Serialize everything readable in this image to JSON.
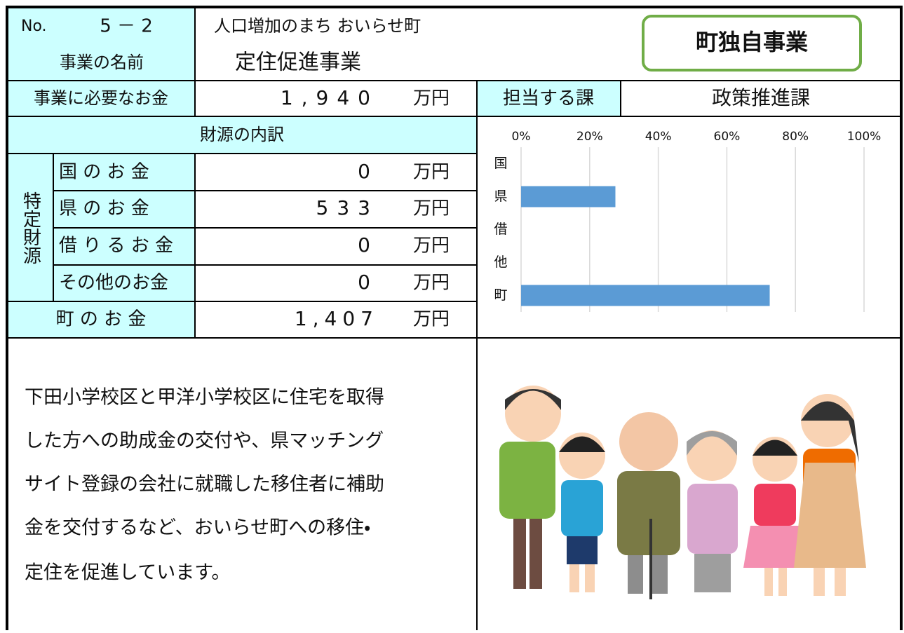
{
  "header": {
    "no_label": "No.",
    "number": "5 － 2",
    "name_label": "事業の名前",
    "catchphrase": "人口増加のまち おいらせ町",
    "project_name": "定住促進事業",
    "badge": "町独自事業"
  },
  "cost": {
    "label": "事業に必要なお金",
    "amount": "1,940",
    "unit": "万円"
  },
  "department": {
    "label": "担当する課",
    "value": "政策推進課"
  },
  "funding": {
    "header": "財源の内訳",
    "group_label": "特定財源",
    "rows": [
      {
        "label": "国 の お 金",
        "amount": "0",
        "unit": "万円"
      },
      {
        "label": "県 の お 金",
        "amount": "533",
        "unit": "万円"
      },
      {
        "label": "借 り る お 金",
        "amount": "0",
        "unit": "万円"
      },
      {
        "label": "その他のお金",
        "amount": "0",
        "unit": "万円"
      }
    ],
    "town": {
      "label": "町 の お 金",
      "amount": "1,407",
      "unit": "万円"
    }
  },
  "description": {
    "lines": [
      "下田小学校区と甲洋小学校区に住宅を取得",
      "した方への助成金の交付や、県マッチング",
      "サイト登録の会社に就職した移住者に補助",
      "金を交付するなど、おいらせ町への移住・",
      "定住を促進しています。"
    ]
  },
  "chart_data": {
    "type": "bar",
    "orientation": "horizontal",
    "categories": [
      "国",
      "県",
      "借",
      "他",
      "町"
    ],
    "values": [
      0,
      27.5,
      0,
      0,
      72.5
    ],
    "color": "#5b9bd5",
    "xlim": [
      0,
      100
    ],
    "xticks": [
      {
        "value": 0,
        "label": "0%"
      },
      {
        "value": 20,
        "label": "20%"
      },
      {
        "value": 40,
        "label": "40%"
      },
      {
        "value": 60,
        "label": "60%"
      },
      {
        "value": 80,
        "label": "80%"
      },
      {
        "value": 100,
        "label": "100%"
      }
    ],
    "grid": true
  }
}
